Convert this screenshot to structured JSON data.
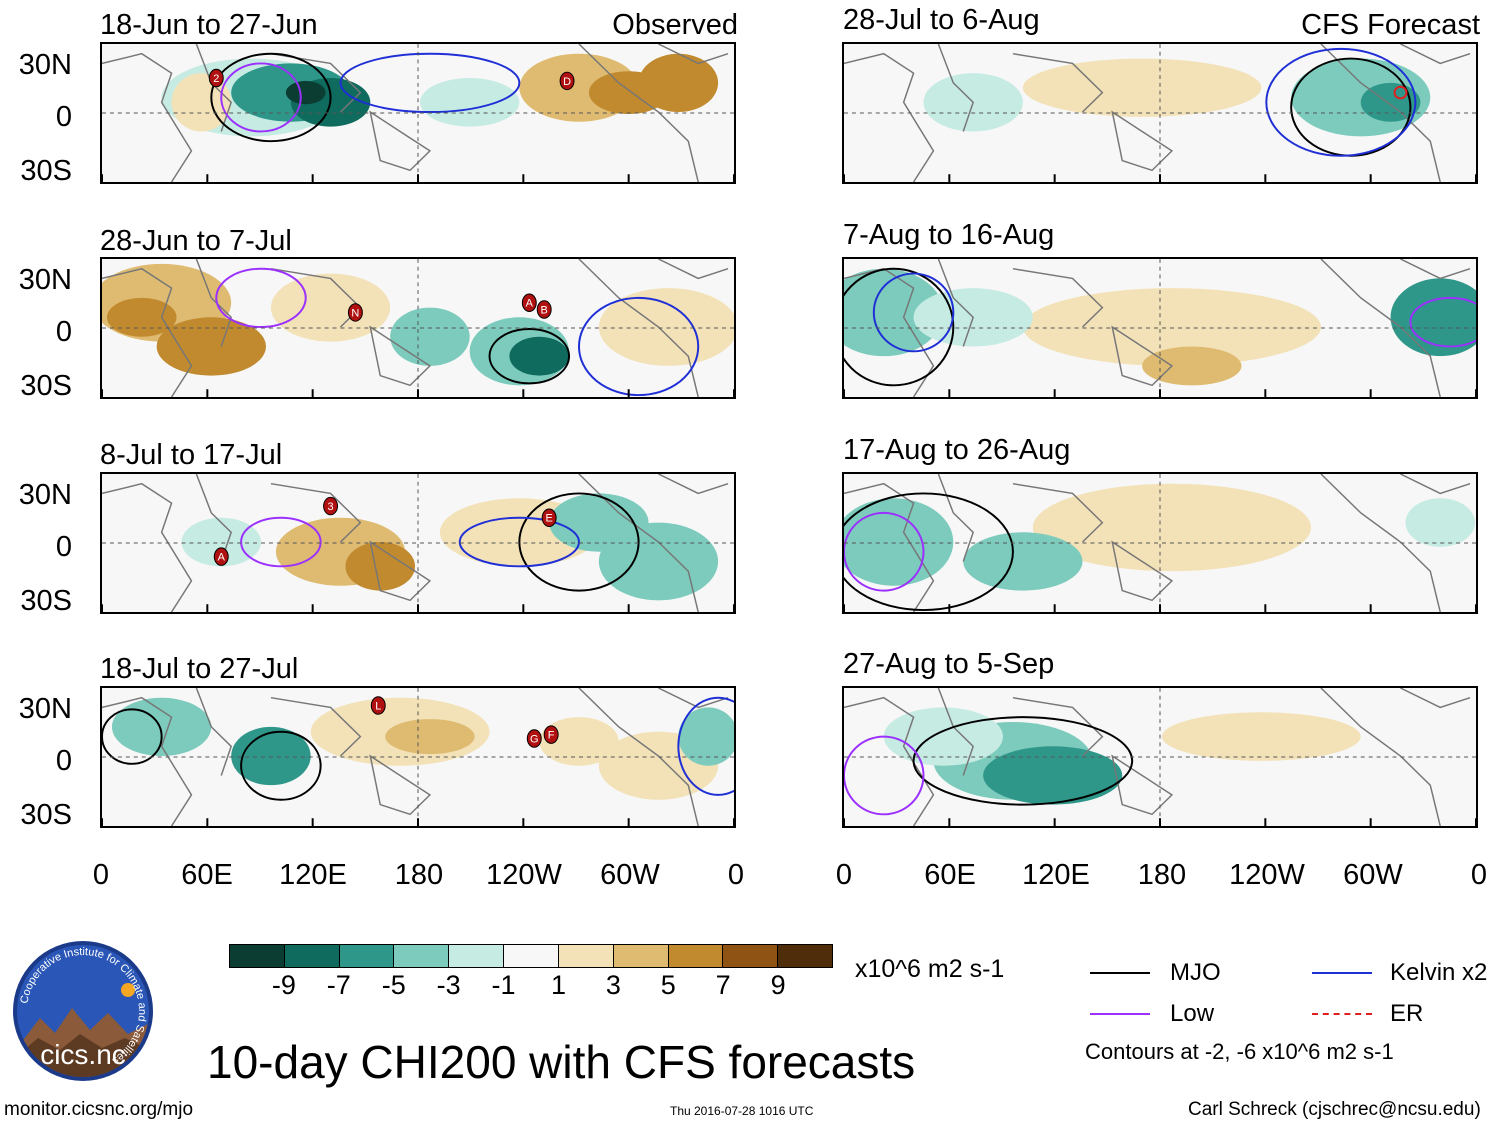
{
  "header": {
    "observed_label": "Observed",
    "forecast_label": "CFS Forecast"
  },
  "observed_panels": [
    {
      "title": "18-Jun to 27-Jun",
      "markers": [
        "2",
        "D"
      ]
    },
    {
      "title": "28-Jun to 7-Jul",
      "markers": [
        "N",
        "A",
        "B"
      ]
    },
    {
      "title": "8-Jul to 17-Jul",
      "markers": [
        "3",
        "A",
        "E"
      ]
    },
    {
      "title": "18-Jul to 27-Jul",
      "markers": [
        "L",
        "G",
        "F"
      ]
    }
  ],
  "forecast_panels": [
    {
      "title": "28-Jul to 6-Aug"
    },
    {
      "title": "7-Aug to 16-Aug"
    },
    {
      "title": "17-Aug to 26-Aug"
    },
    {
      "title": "27-Aug to 5-Sep"
    }
  ],
  "axes": {
    "lat_labels": [
      "30N",
      "0",
      "30S"
    ],
    "lon_labels": [
      "0",
      "60E",
      "120E",
      "180",
      "120W",
      "60W",
      "0"
    ]
  },
  "colorbar": {
    "unit_label": "x10^6 m2 s-1",
    "ticks": [
      "-9",
      "-7",
      "-5",
      "-3",
      "-1",
      "1",
      "3",
      "5",
      "7",
      "9"
    ],
    "colors": [
      "#0b3d33",
      "#0f6b5e",
      "#2f978a",
      "#7ccbbd",
      "#c6ebe3",
      "#f7f7f7",
      "#f3e2b8",
      "#dfbb72",
      "#c18a2f",
      "#8f5413",
      "#4f2d0a"
    ]
  },
  "legend": {
    "mjo": "MJO",
    "kelvin": "Kelvin x2",
    "low": "Low",
    "er": "ER",
    "contours_note": "Contours at -2, -6 x10^6 m2 s-1",
    "colors": {
      "mjo": "#000000",
      "kelvin": "#1f2fd6",
      "low": "#9b30ff",
      "er": "#e02020"
    }
  },
  "logo": {
    "text": "cics.nc",
    "ring_text": "Cooperative Institute for Climate and Satellites"
  },
  "footer": {
    "main_title": "10-day CHI200 with CFS forecasts",
    "website": "monitor.cicsnc.org/mjo",
    "timestamp": "Thu 2016-07-28 1016 UTC",
    "author": "Carl Schreck (cjschrec@ncsu.edu)"
  }
}
